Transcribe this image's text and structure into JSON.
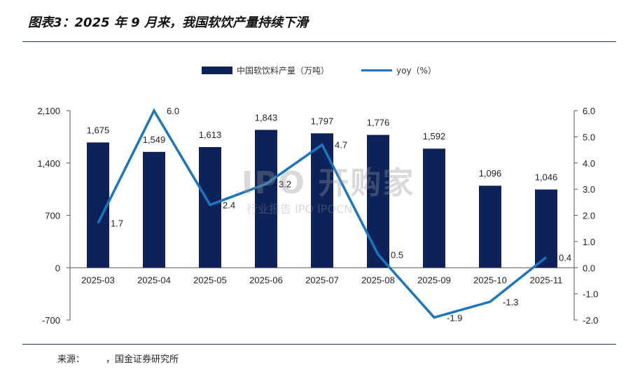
{
  "header": {
    "title": "图表3：2025 年 9 月来，我国软饮产量持续下滑"
  },
  "footer": {
    "source_label": "来源：",
    "source_text": "，国金证券研究所"
  },
  "watermark": {
    "main": "IPO 开购家",
    "sub": "行业报告 IPO IPOCN"
  },
  "chart_data": {
    "type": "bar",
    "categories": [
      "2025-03",
      "2025-04",
      "2025-05",
      "2025-06",
      "2025-07",
      "2025-08",
      "2025-09",
      "2025-10",
      "2025-11"
    ],
    "series": [
      {
        "name": "中国软饮料产量（万吨）",
        "type": "bar",
        "axis": "left",
        "color": "#0d2258",
        "values": [
          1675,
          1549,
          1613,
          1843,
          1797,
          1776,
          1592,
          1096,
          1046
        ],
        "labels": [
          "1,675",
          "1,549",
          "1,613",
          "1,843",
          "1,797",
          "1,776",
          "1,592",
          "1,096",
          "1,046"
        ]
      },
      {
        "name": "yoy（%）",
        "type": "line",
        "axis": "right",
        "color": "#1b76bd",
        "values": [
          1.7,
          6.0,
          2.4,
          3.2,
          4.7,
          0.5,
          -1.9,
          -1.3,
          0.4
        ],
        "labels": [
          "1.7",
          "6.0",
          "2.4",
          "3.2",
          "4.7",
          "0.5",
          "-1.9",
          "-1.3",
          "0.4"
        ]
      }
    ],
    "left_axis": {
      "ylim": [
        -700,
        2100
      ],
      "ticks": [
        -700,
        0,
        700,
        1400,
        2100
      ],
      "tick_labels": [
        "-700",
        "0",
        "700",
        "1,400",
        "2,100"
      ]
    },
    "right_axis": {
      "ylim": [
        -2.0,
        6.0
      ],
      "ticks": [
        -2.0,
        -1.0,
        0.0,
        1.0,
        2.0,
        3.0,
        4.0,
        5.0,
        6.0
      ],
      "tick_labels": [
        "-2.0",
        "-1.0",
        "0.0",
        "1.0",
        "2.0",
        "3.0",
        "4.0",
        "5.0",
        "6.0"
      ]
    },
    "legend_position": "top-center",
    "grid": false
  }
}
